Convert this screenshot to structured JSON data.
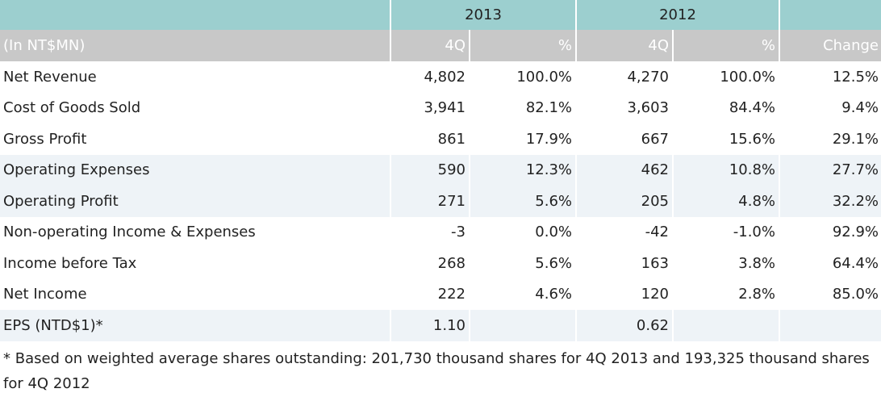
{
  "header": {
    "year_2013": "2013",
    "year_2012": "2012"
  },
  "subheader": {
    "unit_label": "(In NT$MN)",
    "col_4q_2013": "4Q",
    "col_pct_2013": "%",
    "col_4q_2012": "4Q",
    "col_pct_2012": "%",
    "col_change": "Change"
  },
  "rows": [
    {
      "label": "Net Revenue",
      "q4_2013": "4,802",
      "pct_2013": "100.0%",
      "q4_2012": "4,270",
      "pct_2012": "100.0%",
      "change": "12.5%"
    },
    {
      "label": "Cost of Goods Sold",
      "q4_2013": "3,941",
      "pct_2013": "82.1%",
      "q4_2012": "3,603",
      "pct_2012": "84.4%",
      "change": "9.4%"
    },
    {
      "label": "Gross Profit",
      "q4_2013": "861",
      "pct_2013": "17.9%",
      "q4_2012": "667",
      "pct_2012": "15.6%",
      "change": "29.1%"
    },
    {
      "label": "Operating Expenses",
      "q4_2013": "590",
      "pct_2013": "12.3%",
      "q4_2012": "462",
      "pct_2012": "10.8%",
      "change": "27.7%"
    },
    {
      "label": "Operating Profit",
      "q4_2013": "271",
      "pct_2013": "5.6%",
      "q4_2012": "205",
      "pct_2012": "4.8%",
      "change": "32.2%"
    },
    {
      "label": "Non-operating Income & Expenses",
      "q4_2013": "-3",
      "pct_2013": "0.0%",
      "q4_2012": "-42",
      "pct_2012": "-1.0%",
      "change": "92.9%"
    },
    {
      "label": "Income before Tax",
      "q4_2013": "268",
      "pct_2013": "5.6%",
      "q4_2012": "163",
      "pct_2012": "3.8%",
      "change": "64.4%"
    },
    {
      "label": "Net Income",
      "q4_2013": "222",
      "pct_2013": "4.6%",
      "q4_2012": "120",
      "pct_2012": "2.8%",
      "change": "85.0%"
    },
    {
      "label": "EPS (NTD$1)*",
      "q4_2013": "1.10",
      "pct_2013": "",
      "q4_2012": "0.62",
      "pct_2012": "",
      "change": ""
    }
  ],
  "footnote": "* Based on weighted average shares outstanding: 201,730 thousand shares for 4Q 2013 and 193,325 thousand shares for 4Q 2012",
  "colors": {
    "year_header_bg": "#9ccfcf",
    "subheader_bg": "#c8c8c8",
    "shaded_row_bg": "#eef3f7"
  }
}
